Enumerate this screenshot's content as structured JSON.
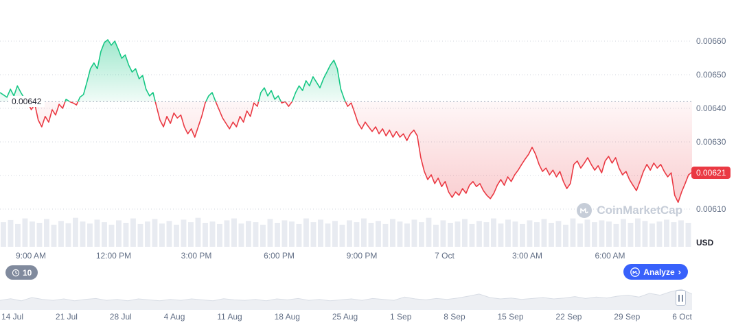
{
  "chart_data": {
    "type": "line",
    "title": "",
    "baseline": {
      "value": 0.00642,
      "label": "0.00642"
    },
    "current_price": {
      "value": 0.00621,
      "label": "0.00621"
    },
    "y_axis": {
      "unit_label": "USD",
      "ticks": [
        {
          "value": 0.0066,
          "label": "0.00660"
        },
        {
          "value": 0.0065,
          "label": "0.00650"
        },
        {
          "value": 0.0064,
          "label": "0.00640"
        },
        {
          "value": 0.0063,
          "label": "0.00630"
        },
        {
          "value": 0.0062,
          "label": ""
        },
        {
          "value": 0.0061,
          "label": "0.00610"
        }
      ]
    },
    "x_axis": {
      "tick_labels": [
        "9:00 AM",
        "12:00 PM",
        "3:00 PM",
        "6:00 PM",
        "9:00 PM",
        "7 Oct",
        "3:00 AM",
        "6:00 AM"
      ]
    },
    "series": [
      {
        "name": "price",
        "values": [
          0.006447,
          0.00644,
          0.006433,
          0.006457,
          0.006437,
          0.006467,
          0.006447,
          0.00643,
          0.006416,
          0.006396,
          0.006412,
          0.006365,
          0.006345,
          0.006376,
          0.006359,
          0.006396,
          0.00638,
          0.006412,
          0.0064,
          0.006427,
          0.00642,
          0.006416,
          0.00641,
          0.006433,
          0.006441,
          0.006478,
          0.006518,
          0.006535,
          0.006518,
          0.006569,
          0.006596,
          0.006604,
          0.006588,
          0.0066,
          0.006576,
          0.006549,
          0.006559,
          0.006529,
          0.006508,
          0.006518,
          0.006488,
          0.006498,
          0.006457,
          0.006437,
          0.006447,
          0.006406,
          0.006365,
          0.006345,
          0.006376,
          0.006355,
          0.006386,
          0.006371,
          0.00638,
          0.006345,
          0.006324,
          0.006339,
          0.006314,
          0.006345,
          0.006376,
          0.006416,
          0.006437,
          0.006447,
          0.00642,
          0.006396,
          0.006371,
          0.006355,
          0.006339,
          0.006359,
          0.006345,
          0.006376,
          0.006359,
          0.006392,
          0.006376,
          0.006416,
          0.006406,
          0.006447,
          0.006461,
          0.006437,
          0.006453,
          0.006427,
          0.006437,
          0.006416,
          0.00642,
          0.006406,
          0.00642,
          0.006447,
          0.006467,
          0.006453,
          0.006482,
          0.006467,
          0.006494,
          0.006478,
          0.006461,
          0.006488,
          0.006508,
          0.006529,
          0.006543,
          0.006518,
          0.006457,
          0.006427,
          0.006406,
          0.006416,
          0.006386,
          0.006355,
          0.006339,
          0.006359,
          0.006345,
          0.006331,
          0.006345,
          0.006324,
          0.006339,
          0.006318,
          0.006335,
          0.006314,
          0.006331,
          0.006314,
          0.006324,
          0.006304,
          0.006324,
          0.006335,
          0.006318,
          0.006253,
          0.006212,
          0.006188,
          0.006202,
          0.006176,
          0.006192,
          0.006167,
          0.006182,
          0.006151,
          0.006135,
          0.006151,
          0.006141,
          0.006161,
          0.006147,
          0.006171,
          0.006182,
          0.006167,
          0.006176,
          0.006155,
          0.006141,
          0.006131,
          0.006147,
          0.006171,
          0.006188,
          0.006171,
          0.006196,
          0.006182,
          0.006202,
          0.006216,
          0.006233,
          0.006249,
          0.006263,
          0.006284,
          0.006263,
          0.006233,
          0.006212,
          0.006222,
          0.006202,
          0.006216,
          0.006196,
          0.006212,
          0.006182,
          0.006161,
          0.006176,
          0.006233,
          0.006243,
          0.006222,
          0.006237,
          0.006253,
          0.006233,
          0.006216,
          0.006229,
          0.006208,
          0.006243,
          0.006257,
          0.006237,
          0.006253,
          0.006222,
          0.006202,
          0.006212,
          0.006188,
          0.006171,
          0.006155,
          0.006182,
          0.006212,
          0.006233,
          0.006216,
          0.006237,
          0.006222,
          0.006233,
          0.006212,
          0.006196,
          0.006208,
          0.006141,
          0.00612,
          0.006151,
          0.006176,
          0.006202,
          0.00621
        ]
      }
    ],
    "volume": {
      "values": [
        0.78,
        0.85,
        0.72,
        0.9,
        0.8,
        0.76,
        0.88,
        0.7,
        0.82,
        0.75,
        0.92,
        0.8,
        0.74,
        0.86,
        0.78,
        0.7,
        0.84,
        0.76,
        0.9,
        0.72,
        0.8,
        0.88,
        0.74,
        0.82,
        0.7,
        0.86,
        0.78,
        0.92,
        0.76,
        0.8,
        0.72,
        0.84,
        0.9,
        0.74,
        0.82,
        0.78,
        0.7,
        0.88,
        0.76,
        0.84,
        0.8,
        0.72,
        0.9,
        0.78,
        0.86,
        0.74,
        0.82,
        0.7,
        0.84,
        0.78,
        0.9,
        0.76,
        0.82,
        0.72,
        0.88,
        0.8,
        0.74,
        0.86,
        0.78,
        0.92,
        0.7,
        0.84,
        0.76,
        0.8,
        0.88,
        0.72,
        0.82,
        0.78,
        0.9,
        0.74,
        0.86,
        0.8,
        0.72,
        0.84,
        0.78,
        0.88,
        0.76,
        0.82,
        0.7,
        0.9,
        0.74,
        0.86,
        0.78,
        0.84,
        0.8,
        0.72,
        0.88,
        0.76,
        0.9,
        0.82,
        0.74,
        0.8,
        0.86,
        0.78,
        0.84,
        0.76
      ]
    },
    "colors": {
      "up": "#16c784",
      "down": "#ea3943",
      "badge_bg": "#ea3943",
      "analyze_bg": "#3861fb",
      "axis_text": "#616e85",
      "volume_bar": "#e8ebf1",
      "navigator_fill": "#edeff3",
      "watermark": "#c6cdd8"
    }
  },
  "watermark": {
    "text": "CoinMarketCap"
  },
  "toolbar": {
    "history_count": "10",
    "analyze_label": "Analyze",
    "analyze_chevron": "›"
  },
  "navigator": {
    "dates": [
      "14 Jul",
      "21 Jul",
      "28 Jul",
      "4 Aug",
      "11 Aug",
      "18 Aug",
      "25 Aug",
      "1 Sep",
      "8 Sep",
      "15 Sep",
      "22 Sep",
      "29 Sep",
      "6 Oct"
    ],
    "values": [
      0.38,
      0.45,
      0.36,
      0.5,
      0.42,
      0.38,
      0.44,
      0.36,
      0.42,
      0.46,
      0.38,
      0.42,
      0.36,
      0.44,
      0.4,
      0.36,
      0.42,
      0.38,
      0.44,
      0.4,
      0.36,
      0.45,
      0.4,
      0.38,
      0.42,
      0.36,
      0.44,
      0.4,
      0.46,
      0.38,
      0.42,
      0.36,
      0.4,
      0.44,
      0.38,
      0.46,
      0.42,
      0.38,
      0.52,
      0.44,
      0.4,
      0.46,
      0.42,
      0.48,
      0.56,
      0.65,
      0.5,
      0.44,
      0.48,
      0.42,
      0.46,
      0.5,
      0.44,
      0.48,
      0.54,
      0.46,
      0.52,
      0.48,
      0.56,
      0.6,
      0.52,
      0.68,
      0.6,
      0.75,
      0.85,
      0.65
    ]
  }
}
